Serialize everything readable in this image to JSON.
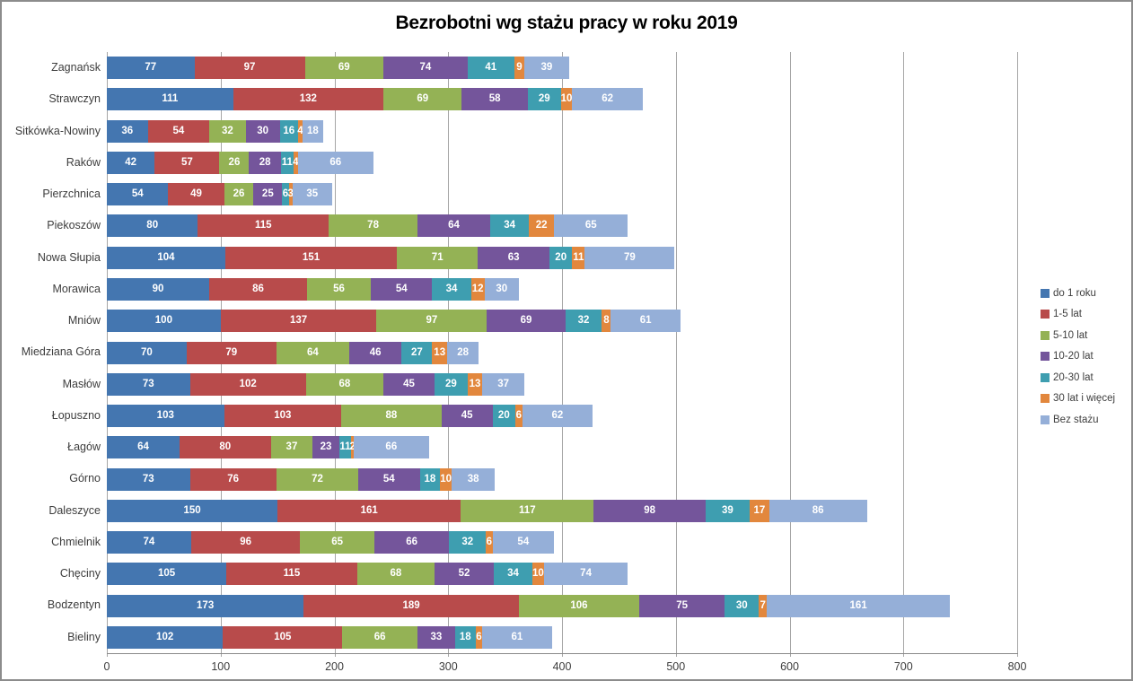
{
  "chart_data": {
    "type": "bar",
    "orientation": "horizontal",
    "stacked": true,
    "title": "Bezrobotni wg stażu pracy w roku 2019",
    "xlabel": "",
    "ylabel": "",
    "xlim": [
      0,
      800
    ],
    "xticks": [
      0,
      100,
      200,
      300,
      400,
      500,
      600,
      700,
      800
    ],
    "grid": "vertical",
    "legend_position": "right",
    "categories": [
      "Zagnańsk",
      "Strawczyn",
      "Sitkówka-Nowiny",
      "Raków",
      "Pierzchnica",
      "Piekoszów",
      "Nowa Słupia",
      "Morawica",
      "Mniów",
      "Miedziana Góra",
      "Masłów",
      "Łopuszno",
      "Łagów",
      "Górno",
      "Daleszyce",
      "Chmielnik",
      "Chęciny",
      "Bodzentyn",
      "Bieliny"
    ],
    "series": [
      {
        "name": "do 1 roku",
        "color": "#4476b0",
        "values": [
          77,
          111,
          36,
          42,
          54,
          80,
          104,
          90,
          100,
          70,
          73,
          103,
          64,
          73,
          150,
          74,
          105,
          173,
          102
        ]
      },
      {
        "name": "1-5 lat",
        "color": "#b84b4b",
        "values": [
          97,
          132,
          54,
          57,
          49,
          115,
          151,
          86,
          137,
          79,
          102,
          103,
          80,
          76,
          161,
          96,
          115,
          189,
          105
        ]
      },
      {
        "name": "5-10 lat",
        "color": "#94b255",
        "values": [
          69,
          69,
          32,
          26,
          26,
          78,
          71,
          56,
          97,
          64,
          68,
          88,
          37,
          72,
          117,
          65,
          68,
          106,
          66
        ]
      },
      {
        "name": "10-20 lat",
        "color": "#74559b",
        "values": [
          74,
          58,
          30,
          28,
          25,
          64,
          63,
          54,
          69,
          46,
          45,
          45,
          23,
          54,
          98,
          66,
          52,
          75,
          33
        ]
      },
      {
        "name": "20-30 lat",
        "color": "#3e9eb0",
        "values": [
          41,
          29,
          16,
          11,
          6,
          34,
          20,
          34,
          32,
          27,
          29,
          20,
          11,
          18,
          39,
          32,
          34,
          30,
          18
        ]
      },
      {
        "name": "30 lat i więcej",
        "color": "#e2873d",
        "values": [
          9,
          10,
          4,
          4,
          3,
          22,
          11,
          12,
          8,
          13,
          13,
          6,
          2,
          10,
          17,
          6,
          10,
          7,
          6
        ]
      },
      {
        "name": "Bez stażu",
        "color": "#95afd8",
        "values": [
          39,
          62,
          18,
          66,
          35,
          65,
          79,
          30,
          61,
          28,
          37,
          62,
          66,
          38,
          86,
          54,
          74,
          161,
          61
        ]
      }
    ]
  }
}
